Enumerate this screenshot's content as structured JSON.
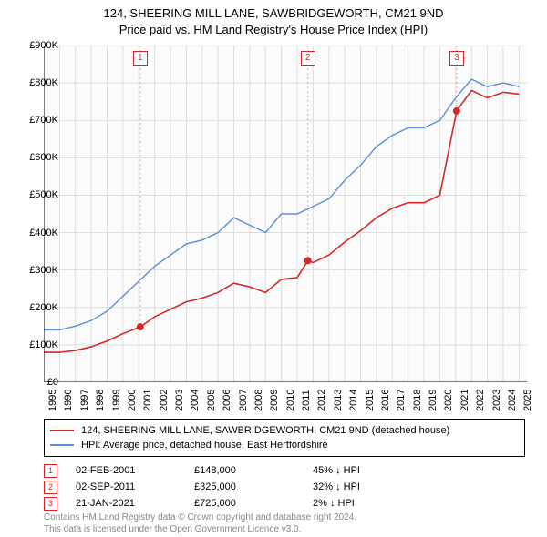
{
  "title_line1": "124, SHEERING MILL LANE, SAWBRIDGEWORTH, CM21 9ND",
  "title_line2": "Price paid vs. HM Land Registry's House Price Index (HPI)",
  "chart": {
    "type": "line",
    "background_color": "#fbfbfb",
    "grid_color": "#dddddd",
    "axis_color": "#000000",
    "xlim": [
      1995,
      2025.5
    ],
    "ylim": [
      0,
      900
    ],
    "x_ticks": [
      1995,
      1996,
      1997,
      1998,
      1999,
      2000,
      2001,
      2002,
      2003,
      2004,
      2005,
      2006,
      2007,
      2008,
      2009,
      2010,
      2011,
      2012,
      2013,
      2014,
      2015,
      2016,
      2017,
      2018,
      2019,
      2020,
      2021,
      2022,
      2023,
      2024,
      2025
    ],
    "y_ticks": [
      0,
      100,
      200,
      300,
      400,
      500,
      600,
      700,
      800,
      900
    ],
    "y_tick_labels": [
      "£0",
      "£100K",
      "£200K",
      "£300K",
      "£400K",
      "£500K",
      "£600K",
      "£700K",
      "£800K",
      "£900K"
    ],
    "series": [
      {
        "id": "hpi",
        "label": "HPI: Average price, detached house, East Hertfordshire",
        "color": "#5b8fd6",
        "line_width": 1.4,
        "points": [
          [
            1995,
            140
          ],
          [
            1996,
            140
          ],
          [
            1997,
            150
          ],
          [
            1998,
            165
          ],
          [
            1999,
            190
          ],
          [
            2000,
            230
          ],
          [
            2001,
            270
          ],
          [
            2002,
            310
          ],
          [
            2003,
            340
          ],
          [
            2004,
            370
          ],
          [
            2005,
            380
          ],
          [
            2006,
            400
          ],
          [
            2007,
            440
          ],
          [
            2008,
            420
          ],
          [
            2009,
            400
          ],
          [
            2010,
            450
          ],
          [
            2011,
            450
          ],
          [
            2012,
            470
          ],
          [
            2013,
            490
          ],
          [
            2014,
            540
          ],
          [
            2015,
            580
          ],
          [
            2016,
            630
          ],
          [
            2017,
            660
          ],
          [
            2018,
            680
          ],
          [
            2019,
            680
          ],
          [
            2020,
            700
          ],
          [
            2021,
            760
          ],
          [
            2022,
            810
          ],
          [
            2023,
            790
          ],
          [
            2024,
            800
          ],
          [
            2025,
            790
          ]
        ]
      },
      {
        "id": "price_paid",
        "label": "124, SHEERING MILL LANE, SAWBRIDGEWORTH, CM21 9ND (detached house)",
        "color": "#d62728",
        "line_width": 1.6,
        "points": [
          [
            1995,
            80
          ],
          [
            1996,
            80
          ],
          [
            1997,
            85
          ],
          [
            1998,
            95
          ],
          [
            1999,
            110
          ],
          [
            2000,
            130
          ],
          [
            2001.09,
            148
          ],
          [
            2002,
            175
          ],
          [
            2003,
            195
          ],
          [
            2004,
            215
          ],
          [
            2005,
            225
          ],
          [
            2006,
            240
          ],
          [
            2007,
            265
          ],
          [
            2008,
            255
          ],
          [
            2009,
            240
          ],
          [
            2010,
            275
          ],
          [
            2011,
            280
          ],
          [
            2011.67,
            325
          ],
          [
            2012,
            320
          ],
          [
            2013,
            340
          ],
          [
            2014,
            375
          ],
          [
            2015,
            405
          ],
          [
            2016,
            440
          ],
          [
            2017,
            465
          ],
          [
            2018,
            480
          ],
          [
            2019,
            480
          ],
          [
            2020,
            500
          ],
          [
            2021.06,
            725
          ],
          [
            2022,
            780
          ],
          [
            2023,
            760
          ],
          [
            2024,
            775
          ],
          [
            2025,
            770
          ]
        ]
      }
    ],
    "event_markers": [
      {
        "n": "1",
        "x": 2001.09,
        "y": 148,
        "color": "#d62728"
      },
      {
        "n": "2",
        "x": 2011.67,
        "y": 325,
        "color": "#d62728"
      },
      {
        "n": "3",
        "x": 2021.06,
        "y": 725,
        "color": "#d62728"
      }
    ],
    "marker_line_color": "#e8a0a0",
    "marker_dash": "2,3"
  },
  "legend": {
    "rows": [
      {
        "color": "#d62728",
        "text": "124, SHEERING MILL LANE, SAWBRIDGEWORTH, CM21 9ND (detached house)"
      },
      {
        "color": "#5b8fd6",
        "text": "HPI: Average price, detached house, East Hertfordshire"
      }
    ]
  },
  "events": {
    "col_widths": {
      "date": 130,
      "price": 130,
      "pct": 130
    },
    "rows": [
      {
        "n": "1",
        "color": "#d62728",
        "date": "02-FEB-2001",
        "price": "£148,000",
        "pct": "45% ↓ HPI"
      },
      {
        "n": "2",
        "color": "#d62728",
        "date": "02-SEP-2011",
        "price": "£325,000",
        "pct": "32% ↓ HPI"
      },
      {
        "n": "3",
        "color": "#d62728",
        "date": "21-JAN-2021",
        "price": "£725,000",
        "pct": "2% ↓ HPI"
      }
    ]
  },
  "footer_line1": "Contains HM Land Registry data © Crown copyright and database right 2024.",
  "footer_line2": "This data is licensed under the Open Government Licence v3.0."
}
